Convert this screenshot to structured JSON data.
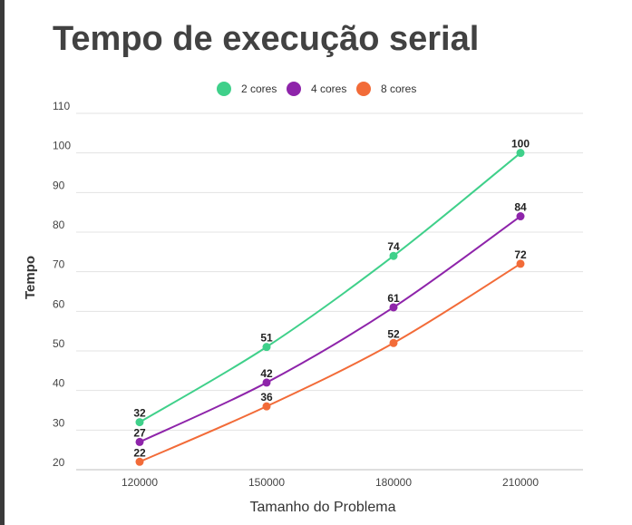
{
  "chart_data": {
    "type": "line",
    "title": "Tempo de execução serial",
    "xlabel": "Tamanho do Problema",
    "ylabel": "Tempo",
    "categories": [
      "120000",
      "150000",
      "180000",
      "210000"
    ],
    "yticks": [
      "20",
      "30",
      "40",
      "50",
      "60",
      "70",
      "80",
      "90",
      "100",
      "110"
    ],
    "ylim": [
      20,
      110
    ],
    "grid": true,
    "legend_position": "top",
    "series": [
      {
        "name": "2 cores",
        "color": "#3fd08a",
        "values": [
          32,
          51,
          74,
          100
        ]
      },
      {
        "name": "4 cores",
        "color": "#8e24aa",
        "values": [
          27,
          42,
          61,
          84
        ]
      },
      {
        "name": "8 cores",
        "color": "#f26b38",
        "values": [
          22,
          36,
          52,
          72
        ]
      }
    ]
  }
}
